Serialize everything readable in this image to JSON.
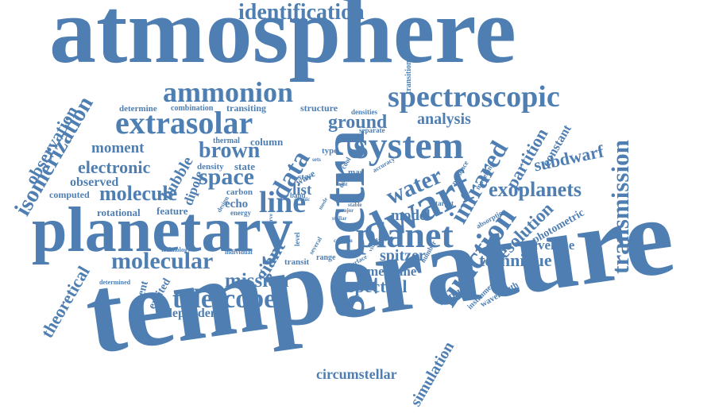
{
  "colors": {
    "word": "#4f7fb2",
    "background": "#ffffff"
  },
  "words": [
    "atmosphere",
    "temperature",
    "planetary",
    "spectra",
    "dwarf",
    "identification",
    "spectroscopic",
    "ammonion",
    "extrasolar",
    "system",
    "ground",
    "analysis",
    "observation",
    "isomerization",
    "determine",
    "combination",
    "transiting",
    "structure",
    "densities",
    "separate",
    "transition",
    "moment",
    "brown",
    "column",
    "thermal",
    "electronic",
    "hubble",
    "data",
    "infrared",
    "partition",
    "constant",
    "subdwarf",
    "transmission",
    "observed",
    "space",
    "dipole",
    "density",
    "state",
    "water",
    "modelling",
    "presence",
    "computed",
    "molecule",
    "carbon",
    "line",
    "list",
    "exoplanets",
    "rotational",
    "feature",
    "echo",
    "energy",
    "model",
    "planet",
    "resolution",
    "photometric",
    "envelope",
    "function",
    "technique",
    "molecular",
    "technology",
    "individual",
    "giant",
    "spitzer",
    "range",
    "theoretical",
    "determined",
    "present",
    "excited",
    "mission",
    "transit",
    "methane",
    "neptune",
    "instrument",
    "wavelength",
    "spectral",
    "telescope",
    "dependent",
    "simulation",
    "circumstellar",
    "wave",
    "star",
    "mas",
    "band",
    "type",
    "level",
    "design",
    "several",
    "atomic",
    "date",
    "cool",
    "accuracy",
    "target",
    "absorption",
    "number",
    "surface",
    "confirm",
    "visible",
    "stable",
    "most",
    "stellar",
    "major",
    "mode",
    "observe",
    "sets"
  ]
}
